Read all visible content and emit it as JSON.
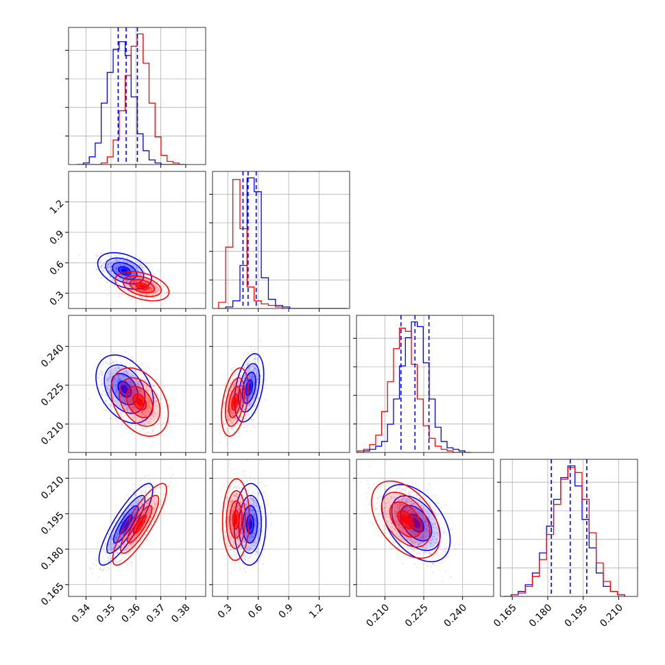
{
  "chart_data": {
    "type": "corner",
    "title": "",
    "grid": true,
    "colors": {
      "blue": "#0000ff",
      "red": "#ff0000"
    },
    "series_colors": [
      "blue",
      "red"
    ],
    "parameters": [
      {
        "ticks": [
          0.34,
          0.35,
          0.36,
          0.37,
          0.38
        ],
        "tick_labels": [
          "0.34",
          "0.35",
          "0.36",
          "0.37",
          "0.38"
        ],
        "range": [
          0.333,
          0.388
        ]
      },
      {
        "ticks": [
          0.3,
          0.6,
          0.9,
          1.2
        ],
        "tick_labels": [
          "0.3",
          "0.6",
          "0.9",
          "1.2"
        ],
        "range": [
          0.15,
          1.5
        ]
      },
      {
        "ticks": [
          0.21,
          0.225,
          0.24
        ],
        "tick_labels": [
          "0.210",
          "0.225",
          "0.240"
        ],
        "range": [
          0.199,
          0.252
        ]
      },
      {
        "ticks": [
          0.165,
          0.18,
          0.195,
          0.21
        ],
        "tick_labels": [
          "0.165",
          "0.180",
          "0.195",
          "0.210"
        ],
        "range": [
          0.16,
          0.218
        ]
      }
    ],
    "histograms": [
      {
        "param": 0,
        "bin_edges": [
          0.3365,
          0.3389,
          0.3413,
          0.3437,
          0.3461,
          0.3485,
          0.3509,
          0.3533,
          0.3557,
          0.3581,
          0.3605,
          0.3629,
          0.3653,
          0.3677,
          0.3701,
          0.3725,
          0.3749,
          0.3773,
          0.3797
        ],
        "blue": [
          0,
          1,
          5,
          14,
          40,
          60,
          75,
          80,
          71,
          44,
          20,
          9,
          3,
          1,
          0,
          0,
          0,
          0
        ],
        "red": [
          0,
          0,
          0,
          0,
          1,
          5,
          16,
          35,
          58,
          77,
          85,
          66,
          40,
          18,
          6,
          2,
          1,
          0
        ],
        "quantiles": [
          0.3529,
          0.3561,
          0.3606
        ]
      },
      {
        "param": 1,
        "bin_edges": [
          0.21,
          0.28,
          0.35,
          0.42,
          0.49,
          0.56,
          0.63,
          0.7,
          0.77,
          0.84,
          0.91,
          0.98,
          1.05,
          1.12,
          1.19,
          1.26,
          1.33,
          1.4,
          1.47
        ],
        "blue": [
          0,
          1,
          5,
          28,
          85,
          76,
          20,
          6,
          2,
          1,
          0,
          0,
          0,
          0,
          0,
          0,
          0,
          0
        ],
        "red": [
          4,
          40,
          84,
          52,
          14,
          5,
          3,
          2,
          1,
          0,
          0,
          0,
          0,
          0,
          0,
          0,
          0,
          0
        ],
        "quantiles": [
          0.45,
          0.5,
          0.58
        ]
      },
      {
        "param": 2,
        "bin_edges": [
          0.1995,
          0.2018,
          0.2041,
          0.2064,
          0.2087,
          0.211,
          0.2133,
          0.2156,
          0.2179,
          0.2202,
          0.2225,
          0.2248,
          0.2271,
          0.2294,
          0.2317,
          0.234,
          0.2363,
          0.2386,
          0.2409,
          0.2432
        ],
        "blue": [
          0,
          1,
          2,
          4,
          7,
          18,
          34,
          55,
          73,
          83,
          80,
          57,
          34,
          16,
          7,
          3,
          2,
          1,
          0
        ],
        "red": [
          1,
          2,
          5,
          11,
          26,
          45,
          66,
          79,
          77,
          56,
          34,
          17,
          9,
          4,
          2,
          1,
          0,
          0,
          0
        ],
        "quantiles": [
          0.2162,
          0.2216,
          0.227
        ]
      },
      {
        "param": 3,
        "bin_edges": [
          0.1615,
          0.1645,
          0.1675,
          0.1705,
          0.1735,
          0.1765,
          0.1795,
          0.1825,
          0.1855,
          0.1885,
          0.1915,
          0.1945,
          0.1975,
          0.2005,
          0.2035,
          0.2065,
          0.2095,
          0.2125
        ],
        "blue": [
          0,
          1,
          3,
          7,
          14,
          26,
          42,
          58,
          71,
          78,
          66,
          46,
          29,
          14,
          6,
          3,
          1
        ],
        "red": [
          0,
          1,
          2,
          6,
          12,
          22,
          37,
          55,
          70,
          77,
          74,
          58,
          38,
          20,
          9,
          3,
          1
        ],
        "quantiles": [
          0.1815,
          0.1895,
          0.1965
        ]
      }
    ],
    "pairs": [
      {
        "x": 0,
        "y": 1,
        "blue": {
          "mean": [
            0.3555,
            0.52
          ],
          "sd": [
            0.0045,
            0.075
          ],
          "rho": -0.4
        },
        "red": {
          "mean": [
            0.3625,
            0.37
          ],
          "sd": [
            0.0045,
            0.06
          ],
          "rho": -0.4
        }
      },
      {
        "x": 0,
        "y": 2,
        "blue": {
          "mean": [
            0.3555,
            0.2235
          ],
          "sd": [
            0.0048,
            0.0055
          ],
          "rho": -0.35
        },
        "red": {
          "mean": [
            0.3615,
            0.2185
          ],
          "sd": [
            0.0048,
            0.0055
          ],
          "rho": -0.35
        }
      },
      {
        "x": 1,
        "y": 2,
        "blue": {
          "mean": [
            0.51,
            0.224
          ],
          "sd": [
            0.06,
            0.0055
          ],
          "rho": 0.4
        },
        "red": {
          "mean": [
            0.37,
            0.2185
          ],
          "sd": [
            0.055,
            0.0055
          ],
          "rho": 0.4
        }
      },
      {
        "x": 0,
        "y": 3,
        "blue": {
          "mean": [
            0.356,
            0.1905
          ],
          "sd": [
            0.0045,
            0.0072
          ],
          "rho": 0.85
        },
        "red": {
          "mean": [
            0.3615,
            0.1905
          ],
          "sd": [
            0.0045,
            0.0072
          ],
          "rho": 0.85
        }
      },
      {
        "x": 1,
        "y": 3,
        "blue": {
          "mean": [
            0.52,
            0.1905
          ],
          "sd": [
            0.065,
            0.0072
          ],
          "rho": 0.05
        },
        "red": {
          "mean": [
            0.38,
            0.1925
          ],
          "sd": [
            0.055,
            0.0072
          ],
          "rho": 0.05
        }
      },
      {
        "x": 2,
        "y": 3,
        "blue": {
          "mean": [
            0.222,
            0.191
          ],
          "sd": [
            0.0055,
            0.0068
          ],
          "rho": -0.45
        },
        "red": {
          "mean": [
            0.218,
            0.1925
          ],
          "sd": [
            0.0055,
            0.0068
          ],
          "rho": -0.45
        }
      }
    ]
  }
}
